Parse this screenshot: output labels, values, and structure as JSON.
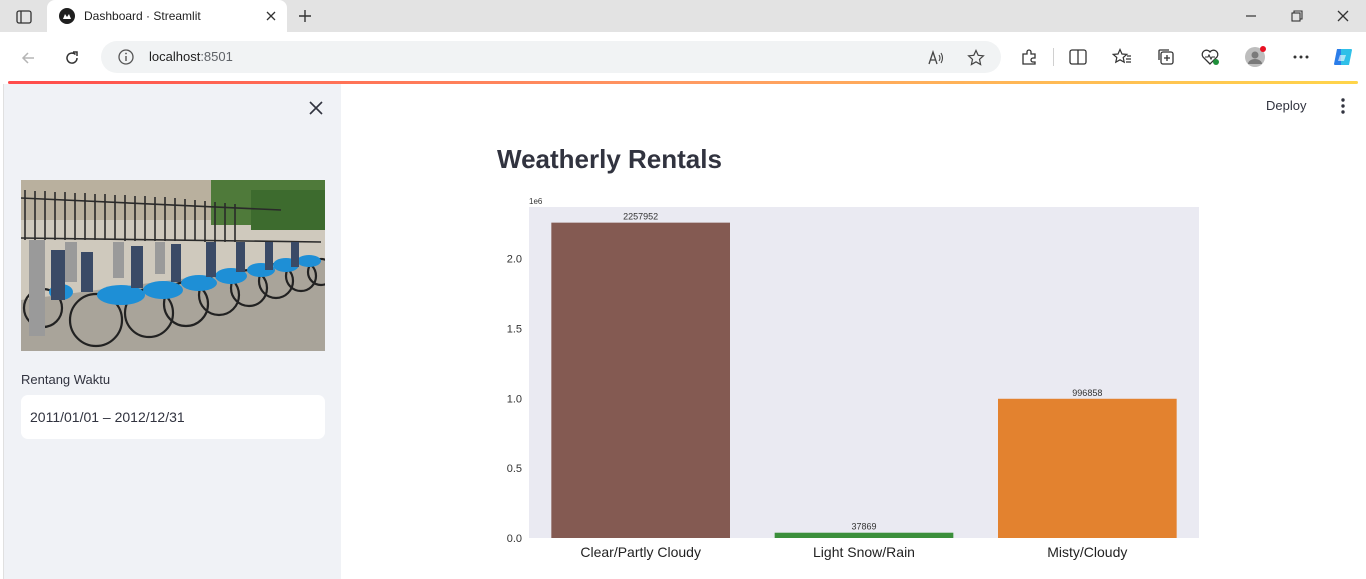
{
  "browser": {
    "tab_title": "Dashboard · Streamlit",
    "url_host": "localhost",
    "url_port": ":8501"
  },
  "app": {
    "deploy_label": "Deploy",
    "title": "Weatherly Rentals"
  },
  "sidebar": {
    "date_label": "Rentang Waktu",
    "date_value": "2011/01/01 – 2012/12/31"
  },
  "chart_data": {
    "type": "bar",
    "categories": [
      "Clear/Partly Cloudy",
      "Light Snow/Rain",
      "Misty/Cloudy"
    ],
    "values": [
      2257952,
      37869,
      996858
    ],
    "data_labels": [
      "2257952",
      "37869",
      "996858"
    ],
    "colors": [
      "#845a52",
      "#3b8f3b",
      "#e3822f"
    ],
    "background": "#eaeaf2",
    "ylim": [
      0,
      2370000
    ],
    "yticks": [
      0,
      500000,
      1000000,
      1500000,
      2000000
    ],
    "ytick_labels": [
      "0.0",
      "0.5",
      "1.0",
      "1.5",
      "2.0"
    ],
    "y_offset_label": "1e6",
    "grid": false
  }
}
